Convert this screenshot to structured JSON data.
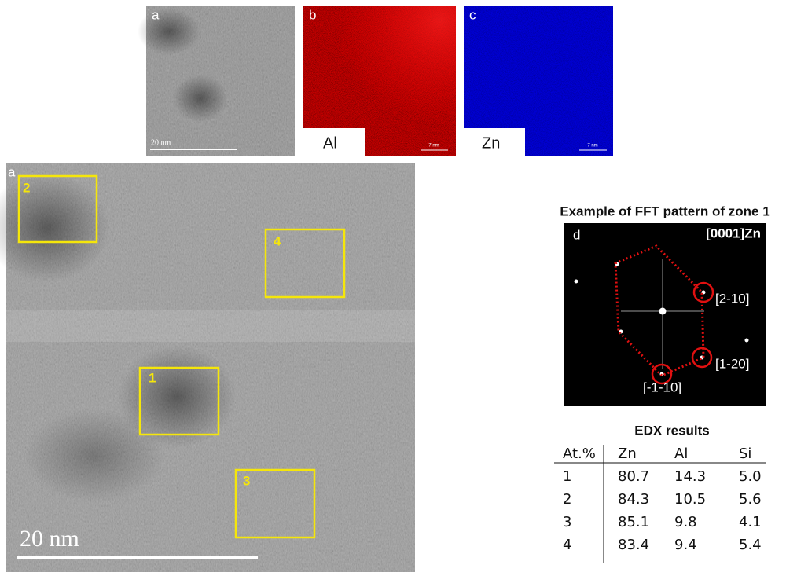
{
  "top_panels": [
    {
      "label": "a",
      "scale_bar": "20 nm"
    },
    {
      "label": "b",
      "element": "Al",
      "scale_bar": "7 nm"
    },
    {
      "label": "c",
      "element": "Zn",
      "scale_bar": "7 nm"
    }
  ],
  "main_image": {
    "label": "a",
    "zones": [
      "2",
      "4",
      "1",
      "3"
    ],
    "scale_bar": "20 nm"
  },
  "fft": {
    "title": "Example of FFT pattern of zone 1",
    "label": "d",
    "zone_axis": "[0001]Zn",
    "spots": [
      "[2-10]",
      "[1-20]",
      "[-1-10]"
    ]
  },
  "edx": {
    "title": "EDX results",
    "header": [
      "At.%",
      "Zn",
      "Al",
      "Si"
    ],
    "rows": [
      [
        "1",
        "80.7",
        "14.3",
        "5.0"
      ],
      [
        "2",
        "84.3",
        "10.5",
        "5.6"
      ],
      [
        "3",
        "85.1",
        "9.8",
        "4.1"
      ],
      [
        "4",
        "83.4",
        "9.4",
        "5.4"
      ]
    ]
  }
}
